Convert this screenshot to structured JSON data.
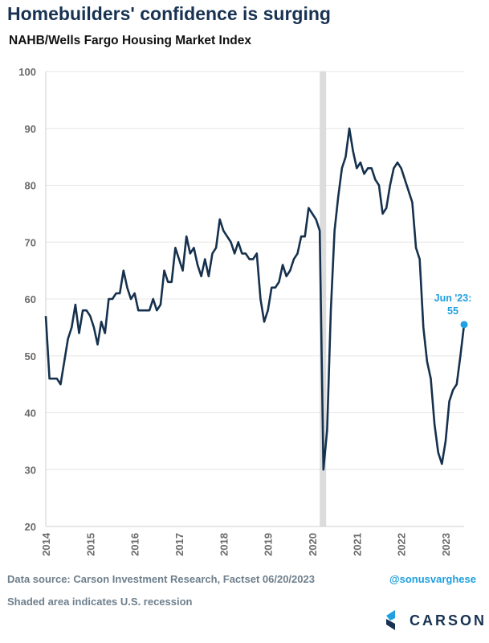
{
  "header": {
    "title": "Homebuilders' confidence is surging",
    "subtitle": "NAHB/Wells Fargo Housing Market Index"
  },
  "footer": {
    "source": "Data source: Carson Investment Research, Factset   06/20/2023",
    "handle": "@sonusvarghese",
    "note": "Shaded area indicates U.S. recession",
    "logo_text": "CARSON"
  },
  "colors": {
    "line": "#15314d",
    "callout": "#1fa0e0",
    "recession": "#dcdcdc",
    "grid": "#e6e6e6"
  },
  "chart_data": {
    "type": "line",
    "title": "NAHB/Wells Fargo Housing Market Index",
    "xlabel": "",
    "ylabel": "",
    "ylim": [
      20,
      100
    ],
    "yticks": [
      20,
      30,
      40,
      50,
      60,
      70,
      80,
      90,
      100
    ],
    "xlim": [
      "2014-01",
      "2023-06"
    ],
    "xticks": [
      "2014",
      "2015",
      "2016",
      "2017",
      "2018",
      "2019",
      "2020",
      "2021",
      "2022",
      "2023"
    ],
    "grid": true,
    "recession": {
      "start": "2020-03",
      "end": "2020-04"
    },
    "series": [
      {
        "start": "2014-01",
        "frequency": "monthly",
        "values": [
          57,
          46,
          46,
          46,
          45,
          49,
          53,
          55,
          59,
          54,
          58,
          58,
          57,
          55,
          52,
          56,
          54,
          60,
          60,
          61,
          61,
          65,
          62,
          60,
          61,
          58,
          58,
          58,
          58,
          60,
          58,
          59,
          65,
          63,
          63,
          69,
          67,
          65,
          71,
          68,
          69,
          66,
          64,
          67,
          64,
          68,
          69,
          74,
          72,
          71,
          70,
          68,
          70,
          68,
          68,
          67,
          67,
          68,
          60,
          56,
          58,
          62,
          62,
          63,
          66,
          64,
          65,
          67,
          68,
          71,
          71,
          76,
          75,
          74,
          72,
          30,
          37,
          58,
          72,
          78,
          83,
          85,
          90,
          86,
          83,
          84,
          82,
          83,
          83,
          81,
          80,
          75,
          76,
          80,
          83,
          84,
          83,
          81,
          79,
          77,
          69,
          67,
          55,
          49,
          46,
          38,
          33,
          31,
          35,
          42,
          44,
          45,
          50,
          55.5
        ]
      }
    ],
    "annotation": {
      "label_line1": "Jun '23:",
      "label_line2": "55",
      "x": "2023-06",
      "y": 55.5
    }
  }
}
